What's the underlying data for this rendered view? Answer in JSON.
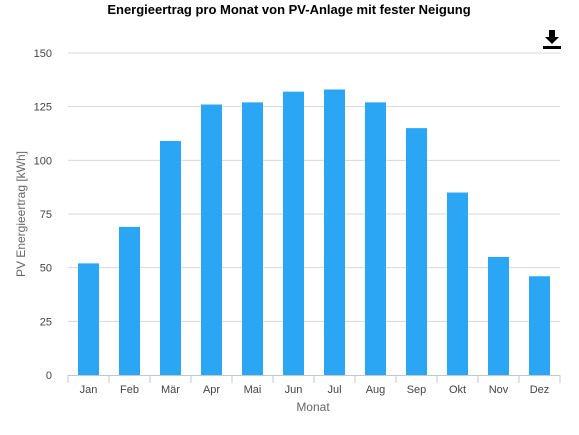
{
  "chart_data": {
    "type": "bar",
    "title": "Energieertrag pro Monat von PV-Anlage mit fester Neigung",
    "xlabel": "Monat",
    "ylabel": "PV Energieertrag [kWh]",
    "categories": [
      "Jan",
      "Feb",
      "Mär",
      "Apr",
      "Mai",
      "Jun",
      "Jul",
      "Aug",
      "Sep",
      "Okt",
      "Nov",
      "Dez"
    ],
    "series": [
      {
        "values": [
          52,
          69,
          109,
          126,
          127,
          132,
          133,
          127,
          115,
          85,
          55,
          46
        ],
        "color": "#2aa6f5"
      }
    ],
    "ylim": [
      0,
      150
    ],
    "yticks": [
      0,
      25,
      50,
      75,
      100,
      125,
      150
    ],
    "grid": true,
    "gridColor": "#d8d8d8",
    "axisColor": "#c0c8d0"
  },
  "toolbar": {
    "download_icon": "download-icon"
  }
}
